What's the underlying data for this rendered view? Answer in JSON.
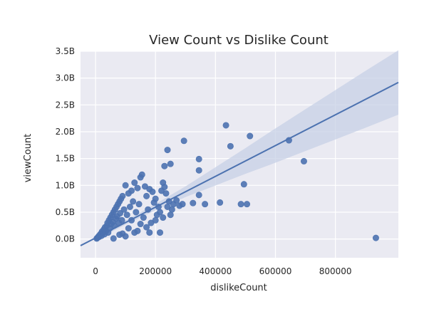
{
  "chart_data": {
    "type": "scatter",
    "title": "View Count vs Dislike Count",
    "xlabel": "dislikeCount",
    "ylabel": "viewCount",
    "xlim": [
      -50000,
      1010000
    ],
    "ylim": [
      -0.35,
      3.5
    ],
    "x_ticks": [
      0,
      200000,
      400000,
      600000,
      800000
    ],
    "x_tick_labels": [
      "0",
      "200000",
      "400000",
      "600000",
      "800000"
    ],
    "y_ticks": [
      0,
      0.5,
      1.0,
      1.5,
      2.0,
      2.5,
      3.0,
      3.5
    ],
    "y_tick_labels": [
      "0.0B",
      "0.5B",
      "1.0B",
      "1.5B",
      "2.0B",
      "2.5B",
      "3.0B",
      "3.5B"
    ],
    "y_unit": "billions of views",
    "grid": true,
    "colors": {
      "background": "#eaeaf2",
      "grid": "#ffffff",
      "points": "#4c72b0",
      "confidence_band": "#c7d0e6"
    },
    "regression": {
      "slope_per_dislike": 2.87e-06,
      "intercept": 0.02,
      "ci_halfwidth_at_x": [
        [
          0,
          0.04
        ],
        [
          100000,
          0.04
        ],
        [
          200000,
          0.06
        ],
        [
          300000,
          0.1
        ],
        [
          400000,
          0.17
        ],
        [
          500000,
          0.24
        ],
        [
          600000,
          0.32
        ],
        [
          700000,
          0.39
        ],
        [
          800000,
          0.46
        ],
        [
          900000,
          0.53
        ],
        [
          1010000,
          0.6
        ]
      ]
    },
    "series": [
      {
        "values": [
          [
            4000,
            0.01
          ],
          [
            6000,
            0.02
          ],
          [
            8000,
            0.03
          ],
          [
            10000,
            0.05
          ],
          [
            12000,
            0.04
          ],
          [
            15000,
            0.08
          ],
          [
            18000,
            0.1
          ],
          [
            20000,
            0.06
          ],
          [
            22000,
            0.14
          ],
          [
            25000,
            0.12
          ],
          [
            28000,
            0.18
          ],
          [
            30000,
            0.09
          ],
          [
            32000,
            0.22
          ],
          [
            35000,
            0.15
          ],
          [
            38000,
            0.25
          ],
          [
            40000,
            0.3
          ],
          [
            42000,
            0.12
          ],
          [
            45000,
            0.35
          ],
          [
            48000,
            0.2
          ],
          [
            50000,
            0.4
          ],
          [
            52000,
            0.28
          ],
          [
            55000,
            0.45
          ],
          [
            58000,
            0.32
          ],
          [
            60000,
            0.5
          ],
          [
            62000,
            0.25
          ],
          [
            65000,
            0.55
          ],
          [
            68000,
            0.38
          ],
          [
            70000,
            0.6
          ],
          [
            72000,
            0.42
          ],
          [
            75000,
            0.65
          ],
          [
            78000,
            0.3
          ],
          [
            80000,
            0.7
          ],
          [
            82000,
            0.48
          ],
          [
            85000,
            0.75
          ],
          [
            88000,
            0.35
          ],
          [
            90000,
            0.8
          ],
          [
            95000,
            0.55
          ],
          [
            100000,
            1.0
          ],
          [
            105000,
            0.45
          ],
          [
            110000,
            0.85
          ],
          [
            115000,
            0.6
          ],
          [
            120000,
            0.9
          ],
          [
            125000,
            0.7
          ],
          [
            130000,
            1.05
          ],
          [
            135000,
            0.5
          ],
          [
            140000,
            0.95
          ],
          [
            145000,
            0.65
          ],
          [
            150000,
            1.15
          ],
          [
            155000,
            1.2
          ],
          [
            160000,
            0.4
          ],
          [
            165000,
            0.98
          ],
          [
            170000,
            0.8
          ],
          [
            175000,
            0.55
          ],
          [
            180000,
            0.93
          ],
          [
            185000,
            0.3
          ],
          [
            190000,
            0.88
          ],
          [
            195000,
            0.68
          ],
          [
            200000,
            0.75
          ],
          [
            205000,
            0.45
          ],
          [
            210000,
            0.6
          ],
          [
            215000,
            0.5
          ],
          [
            220000,
            0.9
          ],
          [
            225000,
            1.05
          ],
          [
            230000,
            0.97
          ],
          [
            235000,
            0.85
          ],
          [
            240000,
            0.6
          ],
          [
            245000,
            0.7
          ],
          [
            250000,
            0.45
          ],
          [
            255000,
            0.55
          ],
          [
            260000,
            0.65
          ],
          [
            270000,
            0.72
          ],
          [
            280000,
            0.62
          ],
          [
            290000,
            0.65
          ],
          [
            250000,
            1.4
          ],
          [
            230000,
            1.36
          ],
          [
            240000,
            1.66
          ],
          [
            295000,
            1.83
          ],
          [
            345000,
            1.49
          ],
          [
            345000,
            1.28
          ],
          [
            345000,
            0.82
          ],
          [
            325000,
            0.67
          ],
          [
            365000,
            0.65
          ],
          [
            415000,
            0.68
          ],
          [
            435000,
            2.12
          ],
          [
            450000,
            1.73
          ],
          [
            485000,
            0.65
          ],
          [
            495000,
            1.02
          ],
          [
            505000,
            0.65
          ],
          [
            515000,
            1.92
          ],
          [
            645000,
            1.84
          ],
          [
            695000,
            1.45
          ],
          [
            935000,
            0.02
          ],
          [
            90000,
            0.1
          ],
          [
            100000,
            0.05
          ],
          [
            130000,
            0.12
          ],
          [
            150000,
            0.28
          ],
          [
            170000,
            0.22
          ],
          [
            180000,
            0.12
          ],
          [
            200000,
            0.35
          ],
          [
            215000,
            0.12
          ],
          [
            225000,
            0.4
          ],
          [
            60000,
            0.01
          ],
          [
            80000,
            0.08
          ],
          [
            110000,
            0.2
          ],
          [
            120000,
            0.35
          ],
          [
            140000,
            0.15
          ]
        ]
      }
    ]
  }
}
